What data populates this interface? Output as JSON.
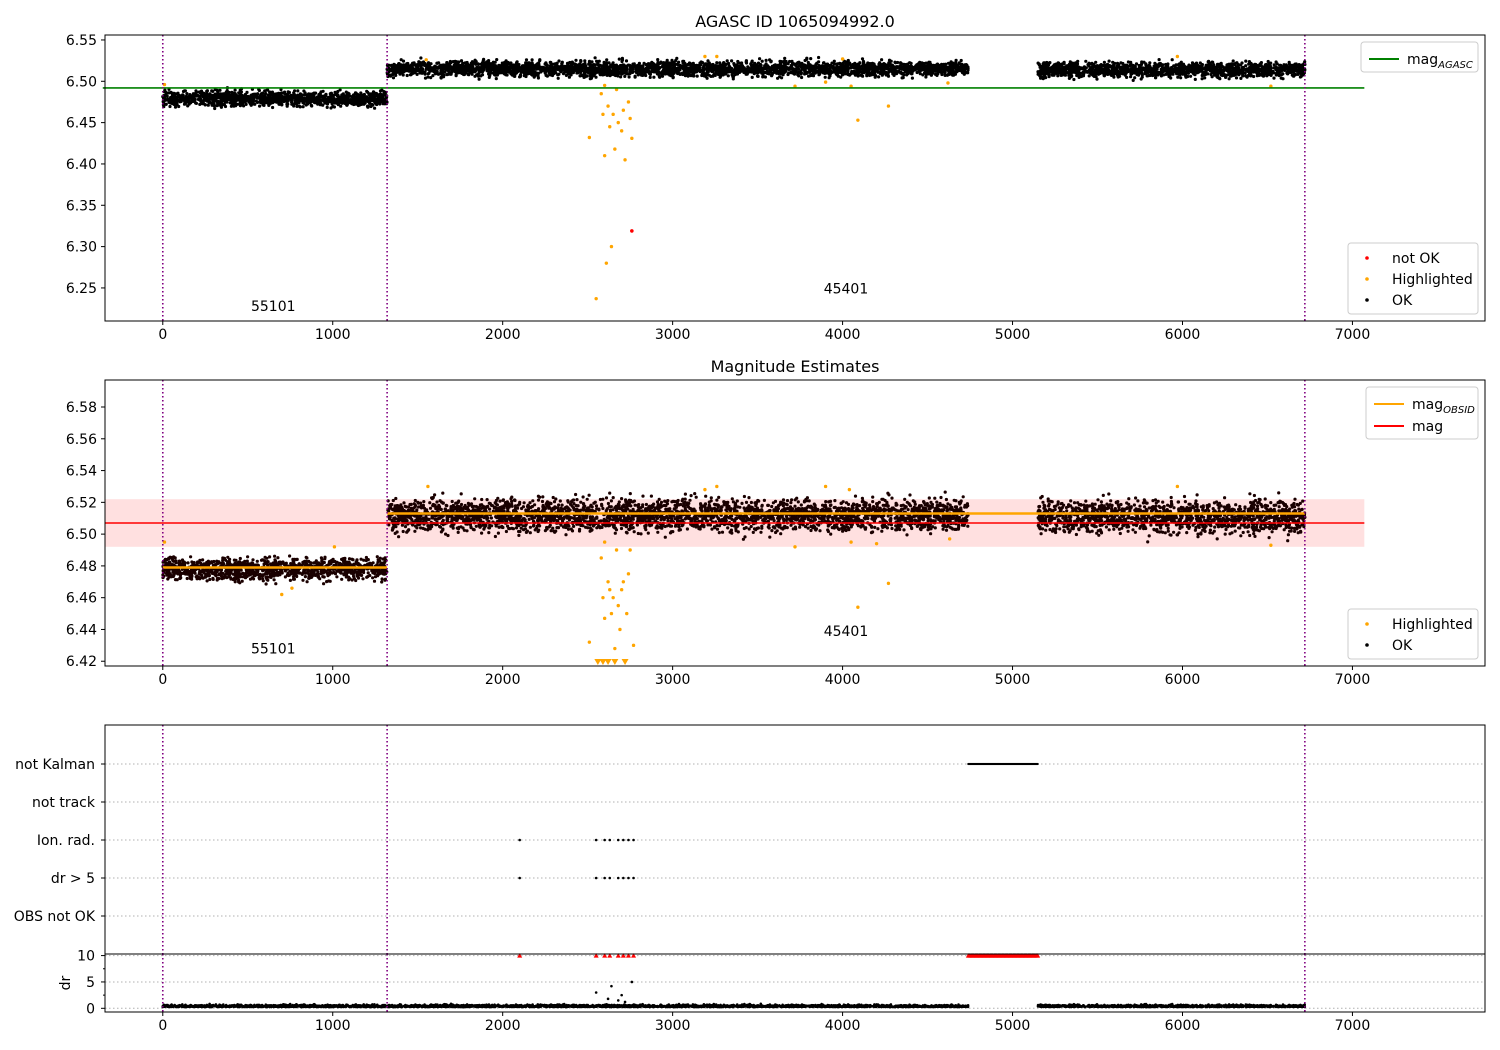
{
  "chart_data": [
    {
      "type": "scatter",
      "title": "AGASC ID 1065094992.0",
      "xlim": [
        -340,
        7780
      ],
      "ylim": [
        6.21,
        6.556
      ],
      "x_ticks": [
        0,
        1000,
        2000,
        3000,
        4000,
        5000,
        6000,
        7000
      ],
      "y_ticks": [
        6.25,
        6.3,
        6.35,
        6.4,
        6.45,
        6.5,
        6.55
      ],
      "obsid_boundaries": [
        0,
        1320,
        6720
      ],
      "obsid_labels": [
        {
          "text": "55101",
          "x": 650,
          "y": 6.222
        },
        {
          "text": "45401",
          "x": 4020,
          "y": 6.243
        }
      ],
      "mag_agasc": 6.492,
      "mag_agasc_xrange": [
        0,
        7070
      ],
      "legend_lines": [
        {
          "name": "mag",
          "sub": "AGASC",
          "color": "#008000"
        }
      ],
      "legend_points": [
        {
          "name": "not OK",
          "color": "#ff0000"
        },
        {
          "name": "Highlighted",
          "color": "#ffa500"
        },
        {
          "name": "OK",
          "color": "#000000"
        }
      ],
      "ok_segments": [
        {
          "x": [
            0,
            1320
          ],
          "mean": 6.479,
          "spread": 0.0045
        },
        {
          "x": [
            1320,
            4740
          ],
          "mean": 6.515,
          "spread": 0.0045
        },
        {
          "x": [
            5150,
            6720
          ],
          "mean": 6.514,
          "spread": 0.0045
        }
      ],
      "highlighted_points": [
        [
          2510,
          6.432
        ],
        [
          2550,
          6.237
        ],
        [
          2600,
          6.41
        ],
        [
          2610,
          6.28
        ],
        [
          2640,
          6.3
        ],
        [
          2660,
          6.418
        ],
        [
          2720,
          6.405
        ],
        [
          2760,
          6.431
        ],
        [
          2580,
          6.485
        ],
        [
          2620,
          6.47
        ],
        [
          2650,
          6.46
        ],
        [
          2680,
          6.45
        ],
        [
          2700,
          6.44
        ],
        [
          2740,
          6.475
        ],
        [
          2590,
          6.46
        ],
        [
          2630,
          6.445
        ],
        [
          2670,
          6.49
        ],
        [
          2710,
          6.465
        ],
        [
          2750,
          6.455
        ],
        [
          2600,
          6.495
        ],
        [
          1550,
          6.526
        ],
        [
          3720,
          6.494
        ],
        [
          3900,
          6.499
        ],
        [
          4050,
          6.494
        ],
        [
          4090,
          6.453
        ],
        [
          4270,
          6.47
        ],
        [
          4620,
          6.498
        ],
        [
          6520,
          6.494
        ],
        [
          5970,
          6.53
        ],
        [
          3190,
          6.53
        ],
        [
          3260,
          6.53
        ],
        [
          4000,
          6.527
        ],
        [
          10,
          6.496
        ]
      ],
      "notok_points": [
        [
          2760,
          6.319
        ]
      ]
    },
    {
      "type": "scatter",
      "title": "Magnitude Estimates",
      "xlim": [
        -340,
        7780
      ],
      "ylim": [
        6.417,
        6.597
      ],
      "x_ticks": [
        0,
        1000,
        2000,
        3000,
        4000,
        5000,
        6000,
        7000
      ],
      "y_ticks": [
        6.42,
        6.44,
        6.46,
        6.48,
        6.5,
        6.52,
        6.54,
        6.56,
        6.58
      ],
      "obsid_boundaries": [
        0,
        1320,
        6720
      ],
      "obsid_labels": [
        {
          "text": "55101",
          "x": 650,
          "y": 6.425
        },
        {
          "text": "45401",
          "x": 4020,
          "y": 6.436
        }
      ],
      "mag": 6.507,
      "mag_band": [
        6.492,
        6.522
      ],
      "mag_xrange": [
        0,
        7070
      ],
      "mag_obsid": [
        {
          "x": [
            0,
            1320
          ],
          "value": 6.479
        },
        {
          "x": [
            1320,
            6720
          ],
          "value": 6.513
        }
      ],
      "legend_lines": [
        {
          "name": "mag",
          "sub": "OBSID",
          "color": "#ffa500"
        },
        {
          "name": "mag",
          "sub": "",
          "color": "#ff0000"
        }
      ],
      "legend_points": [
        {
          "name": "Highlighted",
          "color": "#ffa500"
        },
        {
          "name": "OK",
          "color": "#000000"
        }
      ],
      "ok_segments": [
        {
          "x": [
            0,
            1320
          ],
          "mean": 6.478,
          "spread": 0.0035
        },
        {
          "x": [
            1320,
            4740
          ],
          "mean": 6.512,
          "spread": 0.005
        },
        {
          "x": [
            5150,
            6720
          ],
          "mean": 6.511,
          "spread": 0.005
        }
      ],
      "highlighted_points": [
        [
          2510,
          6.432
        ],
        [
          2770,
          6.43
        ],
        [
          2600,
          6.447
        ],
        [
          2640,
          6.45
        ],
        [
          2690,
          6.44
        ],
        [
          2730,
          6.45
        ],
        [
          2660,
          6.428
        ],
        [
          2580,
          6.485
        ],
        [
          2620,
          6.47
        ],
        [
          2650,
          6.46
        ],
        [
          2680,
          6.455
        ],
        [
          2700,
          6.465
        ],
        [
          2740,
          6.475
        ],
        [
          2590,
          6.46
        ],
        [
          2630,
          6.465
        ],
        [
          2670,
          6.49
        ],
        [
          2710,
          6.47
        ],
        [
          2750,
          6.49
        ],
        [
          2600,
          6.495
        ],
        [
          1560,
          6.53
        ],
        [
          3720,
          6.492
        ],
        [
          3900,
          6.53
        ],
        [
          4050,
          6.495
        ],
        [
          4090,
          6.454
        ],
        [
          4270,
          6.469
        ],
        [
          4630,
          6.497
        ],
        [
          6520,
          6.493
        ],
        [
          5970,
          6.53
        ],
        [
          3190,
          6.528
        ],
        [
          3260,
          6.53
        ],
        [
          4040,
          6.528
        ],
        [
          4200,
          6.494
        ],
        [
          700,
          6.462
        ],
        [
          760,
          6.466
        ],
        [
          1010,
          6.492
        ],
        [
          10,
          6.495
        ]
      ],
      "below_range_markers": [
        2560,
        2590,
        2620,
        2660,
        2720
      ]
    },
    {
      "type": "scatter",
      "xlim": [
        -340,
        7780
      ],
      "x_ticks": [
        0,
        1000,
        2000,
        3000,
        4000,
        5000,
        6000,
        7000
      ],
      "flag_categories": [
        "not Kalman",
        "not track",
        "Ion. rad.",
        "dr > 5",
        "OBS not OK"
      ],
      "flags": {
        "not Kalman": {
          "ranges": [
            [
              4740,
              5150
            ]
          ]
        },
        "not track": {
          "points": []
        },
        "Ion. rad.": {
          "points": [
            2100,
            2550,
            2600,
            2630,
            2680,
            2710,
            2740,
            2770
          ]
        },
        "dr > 5": {
          "points": [
            2100,
            2550,
            2600,
            2630,
            2680,
            2710,
            2740,
            2770
          ]
        },
        "OBS not OK": {
          "points": []
        }
      },
      "obsid_boundaries": [
        0,
        1320,
        6720
      ]
    },
    {
      "type": "scatter",
      "ylabel": "dr",
      "xlim": [
        -340,
        7780
      ],
      "ylim": [
        -0.7,
        10.3
      ],
      "x_ticks": [
        0,
        1000,
        2000,
        3000,
        4000,
        5000,
        6000,
        7000
      ],
      "y_ticks": [
        0,
        5,
        10
      ],
      "y_minor_ticks": [
        2.5,
        7.5
      ],
      "obsid_boundaries": [
        0,
        1320,
        6720
      ],
      "ok_segments": [
        {
          "x": [
            0,
            4740
          ],
          "mean": 0.25
        },
        {
          "x": [
            5150,
            6720
          ],
          "mean": 0.25
        }
      ],
      "bump_points": [
        [
          2550,
          3.0
        ],
        [
          2640,
          4.2
        ],
        [
          2700,
          2.5
        ],
        [
          2760,
          5.0
        ],
        [
          2620,
          1.8
        ],
        [
          2680,
          1.5
        ],
        [
          2720,
          1.2
        ]
      ],
      "clipped_points": [
        2100,
        2550,
        2600,
        2630,
        2680,
        2710,
        2740,
        2770
      ],
      "clipped_ranges": [
        [
          4740,
          5150
        ]
      ]
    }
  ]
}
